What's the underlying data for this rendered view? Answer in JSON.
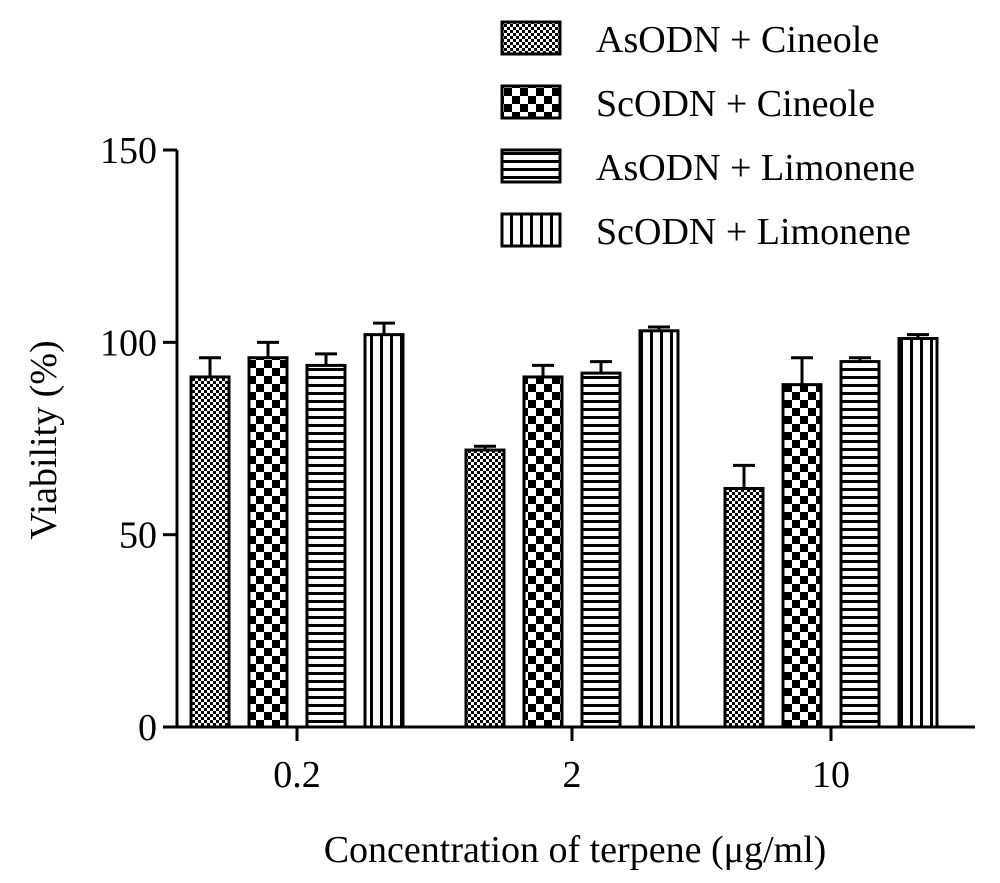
{
  "chart_data": {
    "type": "bar",
    "title": "",
    "xlabel": "Concentration of terpene (μg/ml)",
    "ylabel": "Viability (%)",
    "ylim": [
      0,
      150
    ],
    "yticks": [
      0,
      50,
      100,
      150
    ],
    "categories": [
      "0.2",
      "2",
      "10"
    ],
    "legend_position": "top-right",
    "series": [
      {
        "name": "AsODN + Cineole",
        "pattern": "fine-dots",
        "values": [
          91,
          72,
          62
        ],
        "errors": [
          5,
          1,
          6
        ]
      },
      {
        "name": "ScODN + Cineole",
        "pattern": "checker",
        "values": [
          96,
          91,
          89
        ],
        "errors": [
          4,
          3,
          7
        ]
      },
      {
        "name": "AsODN + Limonene",
        "pattern": "horizontal",
        "values": [
          94,
          92,
          95
        ],
        "errors": [
          3,
          3,
          1
        ]
      },
      {
        "name": "ScODN + Limonene",
        "pattern": "vertical",
        "values": [
          102,
          103,
          101
        ],
        "errors": [
          3,
          1,
          1
        ]
      }
    ]
  }
}
